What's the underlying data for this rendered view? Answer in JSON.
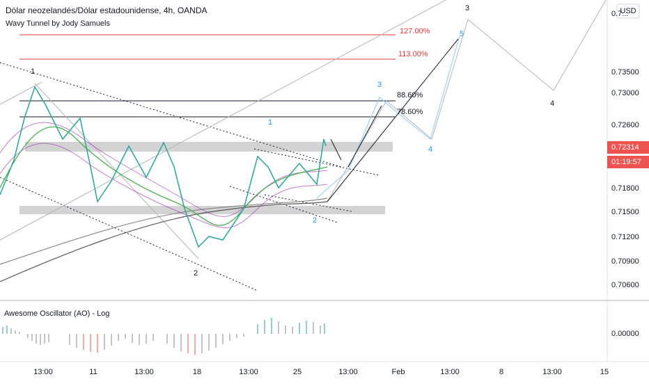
{
  "header": {
    "title": "Dólar neozelandés/Dólar estadounidense, 4h, OANDA",
    "indicator": "Wavy Tunnel by Jody Samuels",
    "currency": "USD"
  },
  "price_axis": {
    "top_label": "0.7...",
    "labels": [
      "0.73500",
      "0.73000",
      "0.72600",
      "0.71800",
      "0.71500",
      "0.71200",
      "0.70900",
      "0.70600"
    ],
    "last_price": "0.72314",
    "countdown": "01:19:57"
  },
  "fibonacci": [
    "127.00%",
    "113.00%",
    "88.60%",
    "78.60%"
  ],
  "waves": {
    "black": [
      "1",
      "2",
      "3",
      "4"
    ],
    "blue": [
      "1",
      "2",
      "3",
      "4",
      "5"
    ]
  },
  "oscillator": {
    "title": "Awesome Oscillator (AO) - Log",
    "axis_label": "0.00000"
  },
  "time_axis": [
    "13:00",
    "11",
    "13:00",
    "18",
    "13:00",
    "25",
    "13:00",
    "Feb",
    "13:00",
    "8",
    "13:00",
    "15"
  ]
}
